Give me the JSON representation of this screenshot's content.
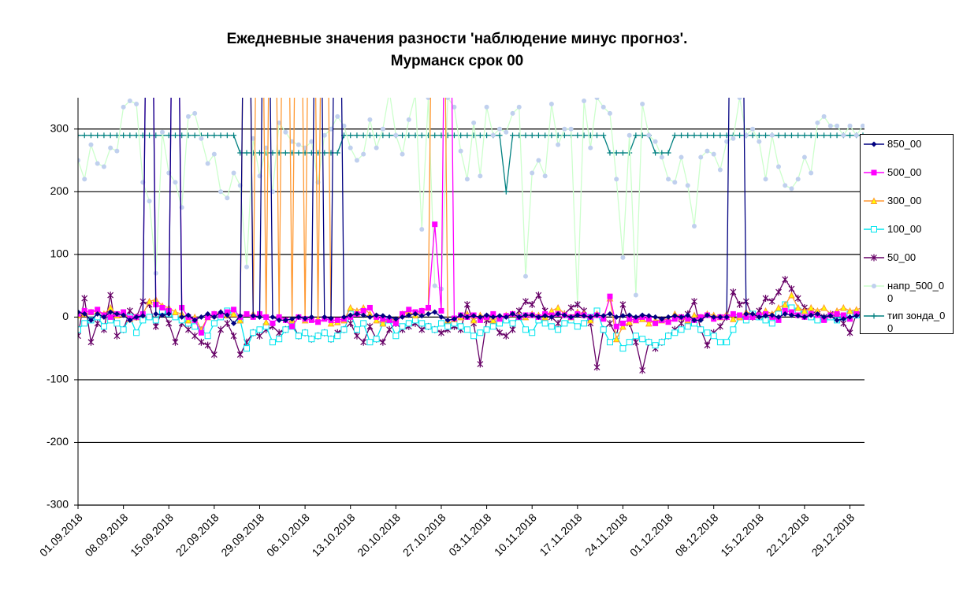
{
  "chart_data": {
    "type": "line",
    "title": "Ежедневные значения  разности 'наблюдение минус прогноз'.",
    "subtitle": "Мурманск     срок 00",
    "categories": [
      "01.09.2018",
      null,
      null,
      null,
      null,
      null,
      null,
      "08.09.2018",
      null,
      null,
      null,
      null,
      null,
      null,
      "15.09.2018",
      null,
      null,
      null,
      null,
      null,
      null,
      "22.09.2018",
      null,
      null,
      null,
      null,
      null,
      null,
      "29.09.2018",
      null,
      null,
      null,
      null,
      null,
      null,
      "06.10.2018",
      null,
      null,
      null,
      null,
      null,
      null,
      "13.10.2018",
      null,
      null,
      null,
      null,
      null,
      null,
      "20.10.2018",
      null,
      null,
      null,
      null,
      null,
      null,
      "27.10.2018",
      null,
      null,
      null,
      null,
      null,
      null,
      "03.11.2018",
      null,
      null,
      null,
      null,
      null,
      null,
      "10.11.2018",
      null,
      null,
      null,
      null,
      null,
      null,
      "17.11.2018",
      null,
      null,
      null,
      null,
      null,
      null,
      "24.11.2018",
      null,
      null,
      null,
      null,
      null,
      null,
      "01.12.2018",
      null,
      null,
      null,
      null,
      null,
      null,
      "08.12.2018",
      null,
      null,
      null,
      null,
      null,
      null,
      "15.12.2018",
      null,
      null,
      null,
      null,
      null,
      null,
      "22.12.2018",
      null,
      null,
      null,
      null,
      null,
      null,
      "29.12.2018",
      null,
      null
    ],
    "ylim": [
      -300,
      350
    ],
    "yticks": [
      -300,
      -200,
      -100,
      0,
      100,
      200,
      300
    ],
    "grid": true,
    "series": [
      {
        "name": "850_00",
        "color": "#000080",
        "marker": "diamond",
        "values": [
          8,
          5,
          -5,
          5,
          0,
          8,
          5,
          3,
          -5,
          0,
          2,
          999,
          5,
          3,
          5,
          999,
          0,
          3,
          -5,
          0,
          5,
          0,
          8,
          3,
          -10,
          2,
          999,
          2,
          0,
          999,
          0,
          -5,
          -5,
          -3,
          0,
          -2,
          0,
          999,
          0,
          -2,
          999,
          0,
          3,
          5,
          3,
          0,
          3,
          2,
          0,
          -3,
          0,
          3,
          5,
          2,
          5,
          8,
          0,
          -5,
          -3,
          3,
          0,
          2,
          0,
          3,
          0,
          2,
          0,
          5,
          0,
          3,
          3,
          0,
          2,
          0,
          5,
          3,
          0,
          3,
          2,
          0,
          3,
          2,
          5,
          0,
          2,
          3,
          0,
          3,
          2,
          0,
          -3,
          0,
          2,
          0,
          3,
          -5,
          -5,
          3,
          0,
          0,
          0,
          999,
          999,
          5,
          5,
          0,
          2,
          3,
          0,
          5,
          3,
          2,
          0,
          3,
          5,
          0,
          2,
          -5,
          -3,
          0,
          2,
          5
        ]
      },
      {
        "name": "500_00",
        "color": "#ff00ff",
        "marker": "square",
        "values": [
          5,
          10,
          8,
          12,
          3,
          0,
          5,
          8,
          -2,
          0,
          5,
          999,
          20,
          15,
          10,
          999,
          15,
          0,
          -5,
          -25,
          0,
          5,
          3,
          8,
          12,
          0,
          5,
          0,
          5,
          0,
          -10,
          0,
          -5,
          -15,
          0,
          -3,
          -5,
          -8,
          -3,
          -5,
          -5,
          -3,
          0,
          5,
          10,
          15,
          0,
          -3,
          -5,
          -10,
          5,
          12,
          8,
          10,
          15,
          148,
          10,
          999,
          -2,
          3,
          0,
          3,
          -5,
          0,
          5,
          -3,
          2,
          5,
          0,
          3,
          3,
          0,
          5,
          3,
          5,
          3,
          0,
          5,
          3,
          0,
          3,
          -3,
          33,
          -15,
          -10,
          -3,
          -5,
          0,
          -3,
          -10,
          -5,
          -8,
          -3,
          0,
          -3,
          -5,
          0,
          3,
          -3,
          0,
          0,
          5,
          3,
          0,
          0,
          3,
          5,
          0,
          -5,
          10,
          8,
          3,
          0,
          5,
          3,
          -5,
          3,
          5,
          3,
          -3,
          5,
          8
        ]
      },
      {
        "name": "300_00",
        "color": "#ff9933",
        "marker": "triangle",
        "values": [
          3,
          5,
          8,
          10,
          5,
          15,
          3,
          5,
          -3,
          0,
          5,
          25,
          28,
          18,
          15,
          8,
          5,
          -5,
          0,
          -20,
          0,
          5,
          8,
          3,
          5,
          -5,
          999,
          5,
          999,
          -8,
          999,
          0,
          999,
          -5,
          999,
          -5,
          999,
          -3,
          999,
          -10,
          -8,
          -5,
          15,
          10,
          15,
          5,
          -5,
          -10,
          -3,
          -5,
          5,
          8,
          3,
          10,
          15,
          999,
          999,
          -5,
          -3,
          0,
          5,
          -5,
          3,
          0,
          -5,
          0,
          3,
          5,
          3,
          0,
          5,
          3,
          0,
          10,
          15,
          5,
          0,
          8,
          5,
          -5,
          5,
          0,
          30,
          -35,
          -15,
          -8,
          -5,
          -3,
          -10,
          -5,
          -5,
          -3,
          5,
          0,
          -5,
          3,
          0,
          5,
          3,
          0,
          5,
          -3,
          0,
          8,
          5,
          3,
          10,
          5,
          15,
          20,
          35,
          15,
          10,
          15,
          10,
          15,
          5,
          10,
          15,
          10,
          12,
          15
        ]
      },
      {
        "name": "100_00",
        "color": "#00e5ee",
        "marker": "open-square",
        "values": [
          -20,
          -10,
          -5,
          0,
          -15,
          -5,
          -10,
          -20,
          0,
          -25,
          -5,
          0,
          -5,
          10,
          5,
          0,
          -5,
          -10,
          -15,
          -20,
          -30,
          -10,
          0,
          10,
          5,
          -5,
          -50,
          -25,
          -20,
          -15,
          -40,
          -35,
          -20,
          -15,
          -30,
          -25,
          -35,
          -30,
          -25,
          -35,
          -30,
          -20,
          5,
          -20,
          -10,
          -40,
          -35,
          -10,
          -5,
          -30,
          -15,
          -10,
          -5,
          -10,
          -15,
          -20,
          -10,
          -15,
          -10,
          -15,
          -20,
          -30,
          -25,
          -20,
          -15,
          -10,
          -5,
          -10,
          0,
          -20,
          -25,
          -5,
          -10,
          -15,
          -20,
          -10,
          -5,
          -15,
          -10,
          0,
          10,
          -20,
          -40,
          -30,
          -50,
          -40,
          -30,
          -35,
          -40,
          -45,
          -40,
          -30,
          -25,
          -20,
          -15,
          -10,
          -20,
          -25,
          -30,
          -40,
          -40,
          -20,
          0,
          -5,
          5,
          0,
          -5,
          -10,
          5,
          20,
          15,
          10,
          5,
          0,
          -5,
          -3,
          0,
          -5,
          0,
          5,
          3,
          0
        ]
      },
      {
        "name": "50_00",
        "color": "#660066",
        "marker": "star",
        "values": [
          -30,
          30,
          -40,
          -10,
          -20,
          35,
          -30,
          -20,
          10,
          0,
          25,
          20,
          -15,
          10,
          -10,
          -40,
          -10,
          -20,
          -30,
          -40,
          -45,
          -60,
          -20,
          -10,
          -30,
          -60,
          -40,
          -25,
          -30,
          -20,
          -15,
          -25,
          -20,
          -10,
          -30,
          -25,
          -35,
          -30,
          -25,
          -35,
          -25,
          -20,
          -10,
          -30,
          -40,
          -15,
          -35,
          -40,
          -20,
          -10,
          -20,
          -15,
          -10,
          -20,
          -15,
          -20,
          -25,
          -20,
          -15,
          -20,
          20,
          -10,
          -75,
          -5,
          -10,
          -25,
          -30,
          -20,
          10,
          25,
          20,
          35,
          10,
          0,
          -10,
          5,
          15,
          20,
          10,
          -10,
          -80,
          -20,
          -10,
          -30,
          20,
          -10,
          -40,
          -85,
          -40,
          -50,
          -40,
          -30,
          -20,
          -10,
          5,
          25,
          -20,
          -45,
          -25,
          -15,
          0,
          40,
          20,
          25,
          0,
          10,
          30,
          25,
          40,
          60,
          45,
          30,
          15,
          10,
          5,
          0,
          5,
          0,
          -10,
          -25,
          5,
          10
        ]
      },
      {
        "name": "напр_500_00",
        "color": "#ccffcc",
        "marker_color": "#c0d0ee",
        "marker": "circle",
        "values": [
          250,
          220,
          275,
          245,
          240,
          270,
          265,
          335,
          345,
          340,
          215,
          185,
          70,
          295,
          230,
          215,
          175,
          320,
          325,
          285,
          245,
          260,
          200,
          190,
          230,
          210,
          80,
          285,
          225,
          270,
          200,
          310,
          295,
          280,
          275,
          270,
          280,
          215,
          290,
          300,
          320,
          305,
          270,
          250,
          260,
          315,
          270,
          300,
          360,
          290,
          260,
          315,
          355,
          140,
          350,
          50,
          45,
          350,
          335,
          265,
          220,
          310,
          225,
          335,
          290,
          300,
          295,
          325,
          335,
          65,
          230,
          250,
          225,
          340,
          275,
          300,
          300,
          20,
          345,
          270,
          350,
          335,
          325,
          220,
          95,
          290,
          35,
          340,
          290,
          280,
          255,
          220,
          215,
          255,
          210,
          145,
          255,
          265,
          260,
          235,
          280,
          285,
          350,
          290,
          300,
          280,
          220,
          290,
          240,
          210,
          205,
          220,
          255,
          230,
          310,
          320,
          305,
          305,
          290,
          305,
          290,
          305
        ]
      },
      {
        "name": "тип зонда_00",
        "color": "#008080",
        "marker": "plus",
        "values": [
          290,
          290,
          290,
          290,
          290,
          290,
          290,
          290,
          290,
          290,
          290,
          290,
          290,
          290,
          290,
          290,
          290,
          290,
          290,
          290,
          290,
          290,
          290,
          290,
          290,
          262,
          262,
          262,
          262,
          262,
          262,
          262,
          262,
          262,
          262,
          262,
          262,
          262,
          262,
          262,
          262,
          290,
          290,
          290,
          290,
          290,
          290,
          290,
          290,
          290,
          290,
          290,
          290,
          290,
          290,
          290,
          290,
          290,
          290,
          290,
          290,
          290,
          290,
          290,
          290,
          290,
          200,
          290,
          290,
          290,
          290,
          290,
          290,
          290,
          290,
          290,
          290,
          290,
          290,
          290,
          290,
          290,
          262,
          262,
          262,
          262,
          290,
          290,
          290,
          262,
          262,
          262,
          290,
          290,
          290,
          290,
          290,
          290,
          290,
          290,
          290,
          290,
          290,
          290,
          290,
          290,
          290,
          290,
          290,
          290,
          290,
          290,
          290,
          290,
          290,
          290,
          290,
          290,
          290,
          290,
          290,
          290
        ]
      }
    ]
  }
}
